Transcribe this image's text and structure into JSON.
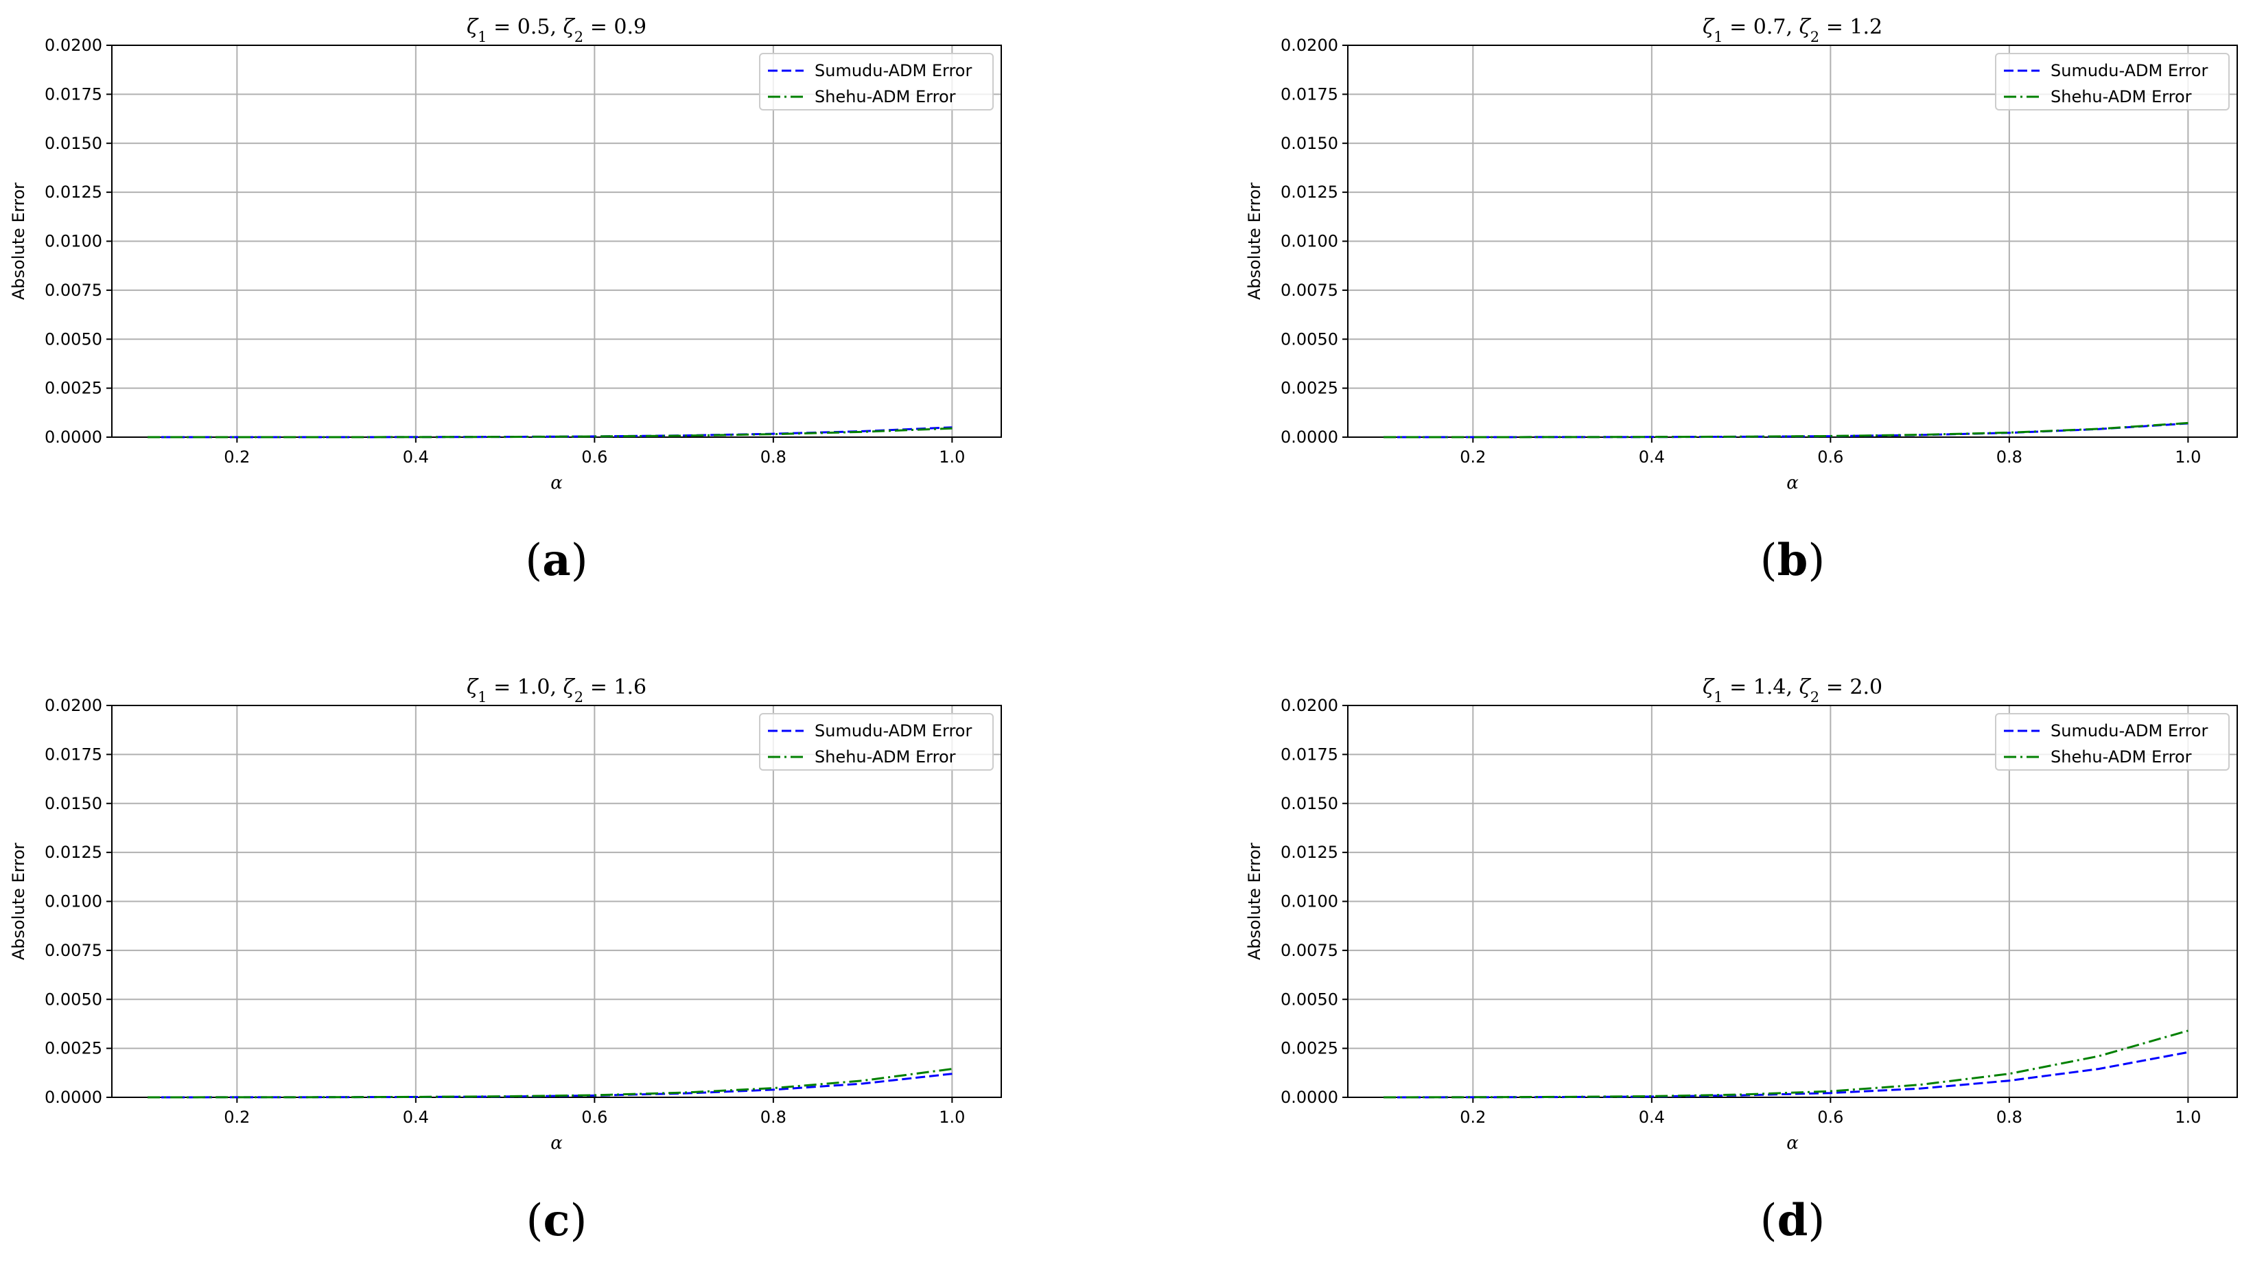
{
  "colors": {
    "sumudu": "#0000ff",
    "shehu": "#008000",
    "grid": "#b0b0b0",
    "axis": "#000000"
  },
  "chart_data": [
    {
      "type": "line",
      "title": "ζ1 = 0.5, ζ2 = 0.9",
      "title_parts": {
        "z1": "ζ",
        "s1": "1",
        "v1": " = 0.5, ",
        "z2": "ζ",
        "s2": "2",
        "v2": " = 0.9"
      },
      "caption": {
        "open": "(",
        "letter": "a",
        "close": ")"
      },
      "xlabel": "α",
      "ylabel": "Absolute Error",
      "xlim": [
        0.06,
        1.055
      ],
      "ylim": [
        0,
        0.02
      ],
      "xticks": [
        0.2,
        0.4,
        0.6,
        0.8,
        1.0
      ],
      "xtick_labels": [
        "0.2",
        "0.4",
        "0.6",
        "0.8",
        "1.0"
      ],
      "yticks": [
        0,
        0.0025,
        0.005,
        0.0075,
        0.01,
        0.0125,
        0.015,
        0.0175,
        0.02
      ],
      "ytick_labels": [
        "0.0000",
        "0.0025",
        "0.0050",
        "0.0075",
        "0.0100",
        "0.0125",
        "0.0150",
        "0.0175",
        "0.0200"
      ],
      "grid": true,
      "legend": "top-right",
      "x": [
        0.1,
        0.2,
        0.3,
        0.4,
        0.5,
        0.6,
        0.7,
        0.8,
        0.9,
        1.0
      ],
      "series": [
        {
          "name": "Sumudu-ADM Error",
          "style": "dashed",
          "color": "#0000ff",
          "values": [
            0.0,
            0.0,
            1e-06,
            5e-06,
            1.5e-05,
            4e-05,
            8.5e-05,
            0.00017,
            0.0003,
            0.0005
          ]
        },
        {
          "name": "Shehu-ADM Error",
          "style": "dashdot",
          "color": "#008000",
          "values": [
            0.0,
            0.0,
            1e-06,
            5e-06,
            1.4e-05,
            3.5e-05,
            7.5e-05,
            0.00015,
            0.00027,
            0.00045
          ]
        }
      ]
    },
    {
      "type": "line",
      "title": "ζ1 = 0.7, ζ2 = 1.2",
      "title_parts": {
        "z1": "ζ",
        "s1": "1",
        "v1": " = 0.7, ",
        "z2": "ζ",
        "s2": "2",
        "v2": " = 1.2"
      },
      "caption": {
        "open": "(",
        "letter": "b",
        "close": ")"
      },
      "xlabel": "α",
      "ylabel": "Absolute Error",
      "xlim": [
        0.06,
        1.055
      ],
      "ylim": [
        0,
        0.02
      ],
      "xticks": [
        0.2,
        0.4,
        0.6,
        0.8,
        1.0
      ],
      "xtick_labels": [
        "0.2",
        "0.4",
        "0.6",
        "0.8",
        "1.0"
      ],
      "yticks": [
        0,
        0.0025,
        0.005,
        0.0075,
        0.01,
        0.0125,
        0.015,
        0.0175,
        0.02
      ],
      "ytick_labels": [
        "0.0000",
        "0.0025",
        "0.0050",
        "0.0075",
        "0.0100",
        "0.0125",
        "0.0150",
        "0.0175",
        "0.0200"
      ],
      "grid": true,
      "legend": "top-right",
      "x": [
        0.1,
        0.2,
        0.3,
        0.4,
        0.5,
        0.6,
        0.7,
        0.8,
        0.9,
        1.0
      ],
      "series": [
        {
          "name": "Sumudu-ADM Error",
          "style": "dashed",
          "color": "#0000ff",
          "values": [
            0.0,
            1e-06,
            3e-06,
            8e-06,
            2.2e-05,
            5e-05,
            0.00011,
            0.00022,
            0.00041,
            0.0007
          ]
        },
        {
          "name": "Shehu-ADM Error",
          "style": "dashdot",
          "color": "#008000",
          "values": [
            0.0,
            1e-06,
            3e-06,
            9e-06,
            2.4e-05,
            5.5e-05,
            0.00012,
            0.00023,
            0.00042,
            0.00072
          ]
        }
      ]
    },
    {
      "type": "line",
      "title": "ζ1 = 1.0, ζ2 = 1.6",
      "title_parts": {
        "z1": "ζ",
        "s1": "1",
        "v1": " = 1.0, ",
        "z2": "ζ",
        "s2": "2",
        "v2": " = 1.6"
      },
      "caption": {
        "open": "(",
        "letter": "c",
        "close": ")"
      },
      "xlabel": "α",
      "ylabel": "Absolute Error",
      "xlim": [
        0.06,
        1.055
      ],
      "ylim": [
        0,
        0.02
      ],
      "xticks": [
        0.2,
        0.4,
        0.6,
        0.8,
        1.0
      ],
      "xtick_labels": [
        "0.2",
        "0.4",
        "0.6",
        "0.8",
        "1.0"
      ],
      "yticks": [
        0,
        0.0025,
        0.005,
        0.0075,
        0.01,
        0.0125,
        0.015,
        0.0175,
        0.02
      ],
      "ytick_labels": [
        "0.0000",
        "0.0025",
        "0.0050",
        "0.0075",
        "0.0100",
        "0.0125",
        "0.0150",
        "0.0175",
        "0.0200"
      ],
      "grid": true,
      "legend": "top-right",
      "x": [
        0.1,
        0.2,
        0.3,
        0.4,
        0.5,
        0.6,
        0.7,
        0.8,
        0.9,
        1.0
      ],
      "series": [
        {
          "name": "Sumudu-ADM Error",
          "style": "dashed",
          "color": "#0000ff",
          "values": [
            0.0,
            2e-06,
            6e-06,
            1.6e-05,
            4e-05,
            9e-05,
            0.0002,
            0.00039,
            0.0007,
            0.0012
          ]
        },
        {
          "name": "Shehu-ADM Error",
          "style": "dashdot",
          "color": "#008000",
          "values": [
            0.0,
            2e-06,
            7e-06,
            2e-05,
            4.8e-05,
            0.00011,
            0.00024,
            0.00047,
            0.00085,
            0.00145
          ]
        }
      ]
    },
    {
      "type": "line",
      "title": "ζ1 = 1.4, ζ2 = 2.0",
      "title_parts": {
        "z1": "ζ",
        "s1": "1",
        "v1": " = 1.4, ",
        "z2": "ζ",
        "s2": "2",
        "v2": " = 2.0"
      },
      "caption": {
        "open": "(",
        "letter": "d",
        "close": ")"
      },
      "xlabel": "α",
      "ylabel": "Absolute Error",
      "xlim": [
        0.06,
        1.055
      ],
      "ylim": [
        0,
        0.02
      ],
      "xticks": [
        0.2,
        0.4,
        0.6,
        0.8,
        1.0
      ],
      "xtick_labels": [
        "0.2",
        "0.4",
        "0.6",
        "0.8",
        "1.0"
      ],
      "yticks": [
        0,
        0.0025,
        0.005,
        0.0075,
        0.01,
        0.0125,
        0.015,
        0.0175,
        0.02
      ],
      "ytick_labels": [
        "0.0000",
        "0.0025",
        "0.0050",
        "0.0075",
        "0.0100",
        "0.0125",
        "0.0150",
        "0.0175",
        "0.0200"
      ],
      "grid": true,
      "legend": "top-right",
      "x": [
        0.1,
        0.2,
        0.3,
        0.4,
        0.5,
        0.6,
        0.7,
        0.8,
        0.9,
        1.0
      ],
      "series": [
        {
          "name": "Sumudu-ADM Error",
          "style": "dashed",
          "color": "#0000ff",
          "values": [
            0.0,
            5e-06,
            1.5e-05,
            4e-05,
            0.0001,
            0.00022,
            0.00045,
            0.00085,
            0.00145,
            0.0023
          ]
        },
        {
          "name": "Shehu-ADM Error",
          "style": "dashdot",
          "color": "#008000",
          "values": [
            0.0,
            6e-06,
            2e-05,
            5.5e-05,
            0.00014,
            0.00031,
            0.00064,
            0.0012,
            0.0021,
            0.0034
          ]
        }
      ]
    }
  ]
}
